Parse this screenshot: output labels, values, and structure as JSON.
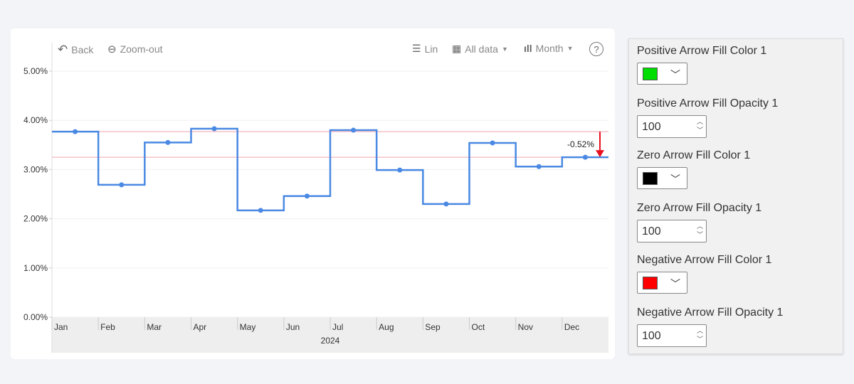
{
  "toolbar": {
    "back": "Back",
    "zoom_out": "Zoom-out",
    "scale": "Lin",
    "range": "All data",
    "period": "Month",
    "help": "?"
  },
  "chart_data": {
    "type": "line",
    "step": true,
    "categories": [
      "Jan",
      "Feb",
      "Mar",
      "Apr",
      "May",
      "Jun",
      "Jul",
      "Aug",
      "Sep",
      "Oct",
      "Nov",
      "Dec"
    ],
    "x_group_label": "2024",
    "values": [
      3.77,
      2.69,
      3.55,
      3.83,
      2.17,
      2.46,
      3.8,
      2.99,
      2.3,
      3.54,
      3.06,
      3.25
    ],
    "y_ticks": [
      "0.00%",
      "1.00%",
      "2.00%",
      "3.00%",
      "4.00%",
      "5.00%"
    ],
    "ylim": [
      0,
      5
    ],
    "reference_lines": [
      3.77,
      3.25
    ],
    "annotation": "-0.52%",
    "colors": {
      "line": "#4a89e3",
      "reference": "#f5b5bd",
      "arrow": "#e8101f"
    }
  },
  "panel": {
    "fields": [
      {
        "label": "Positive Arrow Fill Color 1",
        "type": "color",
        "value": "#00dd00"
      },
      {
        "label": "Positive Arrow Fill Opacity 1",
        "type": "number",
        "value": "100"
      },
      {
        "label": "Zero Arrow Fill Color 1",
        "type": "color",
        "value": "#000000"
      },
      {
        "label": "Zero Arrow Fill Opacity 1",
        "type": "number",
        "value": "100"
      },
      {
        "label": "Negative Arrow Fill Color 1",
        "type": "color",
        "value": "#ff0000"
      },
      {
        "label": "Negative Arrow Fill Opacity 1",
        "type": "number",
        "value": "100"
      }
    ]
  }
}
